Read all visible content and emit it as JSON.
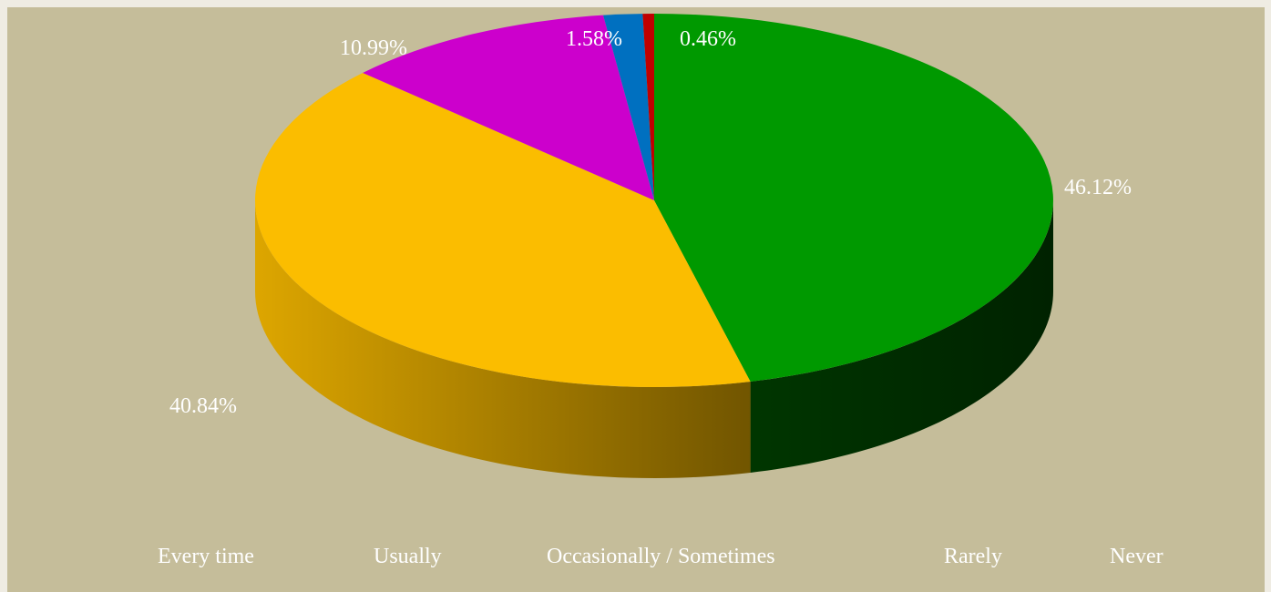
{
  "chart_data": {
    "type": "pie",
    "title": "",
    "series": [
      {
        "labels": [
          "Every time",
          "Usually",
          "Occasionally / Sometimes",
          "Rarely",
          "Never"
        ],
        "values": [
          46.12,
          40.84,
          10.99,
          1.58,
          0.46
        ],
        "value_labels": [
          "46.12%",
          "40.84%",
          "10.99%",
          "1.58%",
          "0.46%"
        ],
        "colors": [
          "#009900",
          "#fbbd00",
          "#cc00cc",
          "#0070c0",
          "#c00000"
        ]
      }
    ],
    "legend": {
      "placement": "bottom",
      "entries": [
        "Every time",
        "Usually",
        "Occasionally / Sometimes",
        "Rarely",
        "Never"
      ]
    },
    "style": "3d"
  }
}
